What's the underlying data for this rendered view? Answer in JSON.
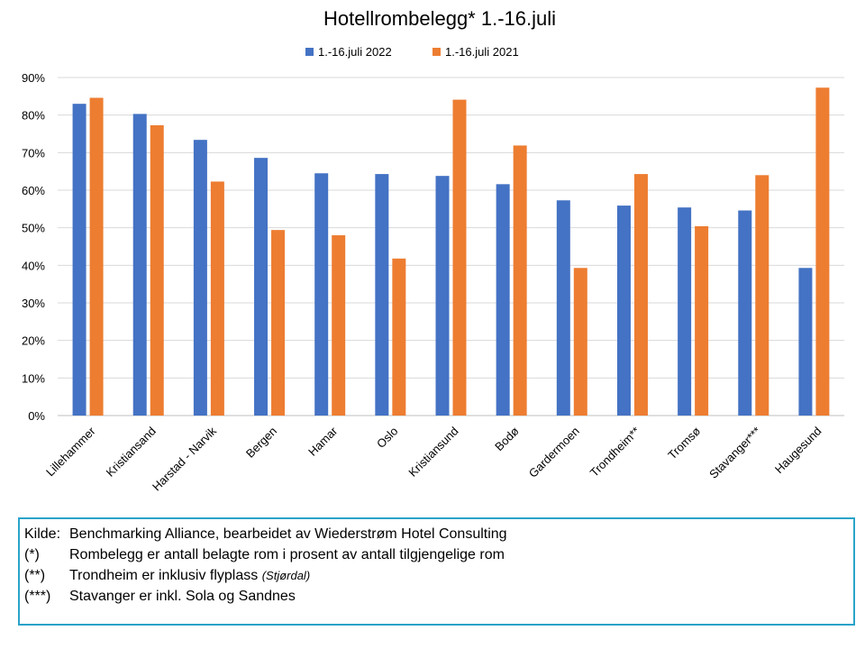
{
  "chart_data": {
    "type": "bar",
    "title": "Hotellrombelegg* 1.-16.juli",
    "xlabel": "",
    "ylabel": "",
    "categories": [
      "Lillehammer",
      "Kristiansand",
      "Harstad - Narvik",
      "Bergen",
      "Hamar",
      "Oslo",
      "Kristiansund",
      "Bodø",
      "Gardermoen",
      "Trondheim**",
      "Tromsø",
      "Stavanger***",
      "Haugesund"
    ],
    "series": [
      {
        "name": "1.-16.juli 2022",
        "color": "#4472c4",
        "values": [
          83,
          80.3,
          73.4,
          68.6,
          64.5,
          64.3,
          63.8,
          61.6,
          57.3,
          55.9,
          55.4,
          54.6,
          39.3
        ]
      },
      {
        "name": "1.-16.juli 2021",
        "color": "#ed7d31",
        "values": [
          84.6,
          77.3,
          62.3,
          49.4,
          48,
          41.8,
          84.1,
          71.9,
          39.3,
          64.3,
          50.4,
          64,
          87.3
        ]
      }
    ],
    "ylim": [
      0,
      90
    ],
    "y_ticks": [
      0,
      10,
      20,
      30,
      40,
      50,
      60,
      70,
      80,
      90
    ],
    "y_tick_format": "{v}%",
    "grid": true,
    "legend_position": "top-center"
  },
  "notes": [
    {
      "marker": "Kilde:",
      "text": "Benchmarking Alliance, bearbeidet av Wiederstrøm Hotel Consulting",
      "extra": ""
    },
    {
      "marker": "(*)",
      "text": "Rombelegg er antall belagte rom i prosent av antall tilgjengelige rom",
      "extra": ""
    },
    {
      "marker": "(**)",
      "text": "Trondheim er inklusiv flyplass ",
      "extra": "(Stjørdal)"
    },
    {
      "marker": "(***)",
      "text": "Stavanger  er  inkl.  Sola og  Sandnes",
      "extra": ""
    }
  ],
  "colors": {
    "notes_border": "#2aa3c9",
    "gridline": "#d9d9d9"
  }
}
